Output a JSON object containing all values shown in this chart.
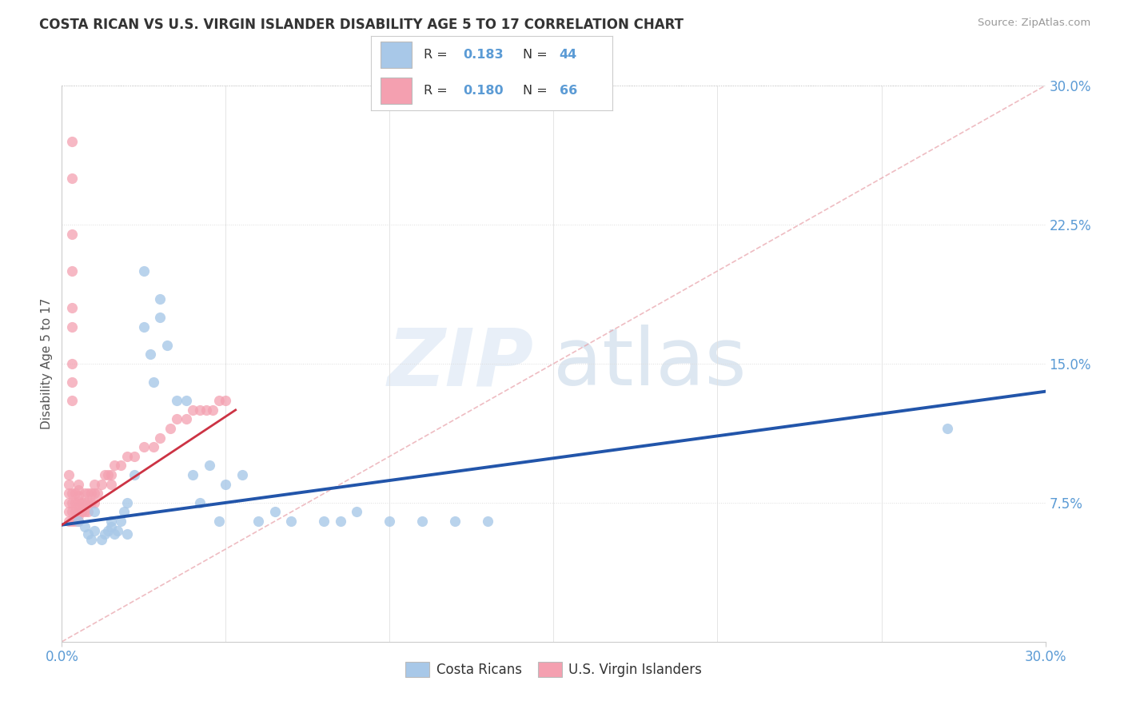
{
  "title": "COSTA RICAN VS U.S. VIRGIN ISLANDER DISABILITY AGE 5 TO 17 CORRELATION CHART",
  "source": "Source: ZipAtlas.com",
  "ylabel": "Disability Age 5 to 17",
  "xlim": [
    0,
    0.3
  ],
  "ylim": [
    0,
    0.3
  ],
  "ytick_labels_right": [
    "7.5%",
    "15.0%",
    "22.5%",
    "30.0%"
  ],
  "yticks_right": [
    0.075,
    0.15,
    0.225,
    0.3
  ],
  "legend_r1": "0.183",
  "legend_n1": "44",
  "legend_r2": "0.180",
  "legend_n2": "66",
  "color_blue": "#A8C8E8",
  "color_pink": "#F4A0B0",
  "color_blue_line": "#2255AA",
  "color_pink_line": "#CC3344",
  "color_diag": "#E8A0A8",
  "watermark_zip": "ZIP",
  "watermark_atlas": "atlas",
  "title_color": "#333333",
  "axis_color": "#5B9BD5",
  "blue_trend_x": [
    0.0,
    0.3
  ],
  "blue_trend_y": [
    0.063,
    0.135
  ],
  "pink_trend_x": [
    0.0,
    0.053
  ],
  "pink_trend_y": [
    0.063,
    0.125
  ],
  "blue_x": [
    0.005,
    0.007,
    0.008,
    0.009,
    0.01,
    0.01,
    0.012,
    0.013,
    0.014,
    0.015,
    0.015,
    0.016,
    0.017,
    0.018,
    0.019,
    0.02,
    0.02,
    0.022,
    0.025,
    0.025,
    0.027,
    0.028,
    0.03,
    0.03,
    0.032,
    0.035,
    0.038,
    0.04,
    0.042,
    0.045,
    0.048,
    0.05,
    0.055,
    0.06,
    0.065,
    0.07,
    0.08,
    0.085,
    0.09,
    0.1,
    0.11,
    0.12,
    0.13,
    0.27
  ],
  "blue_y": [
    0.065,
    0.062,
    0.058,
    0.055,
    0.06,
    0.07,
    0.055,
    0.058,
    0.06,
    0.062,
    0.065,
    0.058,
    0.06,
    0.065,
    0.07,
    0.058,
    0.075,
    0.09,
    0.17,
    0.2,
    0.155,
    0.14,
    0.185,
    0.175,
    0.16,
    0.13,
    0.13,
    0.09,
    0.075,
    0.095,
    0.065,
    0.085,
    0.09,
    0.065,
    0.07,
    0.065,
    0.065,
    0.065,
    0.07,
    0.065,
    0.065,
    0.065,
    0.065,
    0.115
  ],
  "pink_x": [
    0.002,
    0.002,
    0.002,
    0.002,
    0.002,
    0.002,
    0.003,
    0.003,
    0.003,
    0.003,
    0.004,
    0.004,
    0.004,
    0.004,
    0.005,
    0.005,
    0.005,
    0.005,
    0.005,
    0.005,
    0.005,
    0.005,
    0.006,
    0.006,
    0.007,
    0.007,
    0.007,
    0.008,
    0.008,
    0.008,
    0.009,
    0.009,
    0.01,
    0.01,
    0.01,
    0.011,
    0.012,
    0.013,
    0.014,
    0.015,
    0.015,
    0.016,
    0.018,
    0.02,
    0.022,
    0.025,
    0.028,
    0.03,
    0.033,
    0.035,
    0.038,
    0.04,
    0.042,
    0.044,
    0.046,
    0.048,
    0.05,
    0.003,
    0.003,
    0.003,
    0.003,
    0.003,
    0.003,
    0.003,
    0.003,
    0.003
  ],
  "pink_y": [
    0.065,
    0.07,
    0.075,
    0.08,
    0.085,
    0.09,
    0.065,
    0.07,
    0.075,
    0.08,
    0.065,
    0.07,
    0.075,
    0.08,
    0.065,
    0.068,
    0.07,
    0.073,
    0.076,
    0.079,
    0.082,
    0.085,
    0.07,
    0.075,
    0.07,
    0.075,
    0.08,
    0.07,
    0.075,
    0.08,
    0.075,
    0.08,
    0.075,
    0.08,
    0.085,
    0.08,
    0.085,
    0.09,
    0.09,
    0.085,
    0.09,
    0.095,
    0.095,
    0.1,
    0.1,
    0.105,
    0.105,
    0.11,
    0.115,
    0.12,
    0.12,
    0.125,
    0.125,
    0.125,
    0.125,
    0.13,
    0.13,
    0.27,
    0.25,
    0.22,
    0.2,
    0.18,
    0.17,
    0.15,
    0.14,
    0.13
  ]
}
